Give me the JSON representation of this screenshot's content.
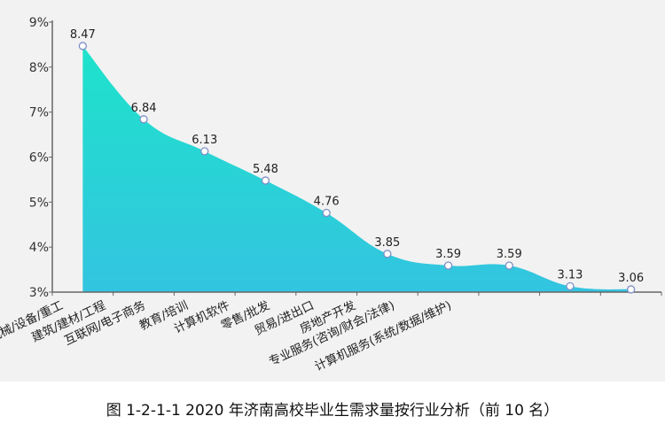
{
  "chart_data": {
    "type": "area",
    "title": "",
    "xlabel": "",
    "ylabel": "",
    "categories": [
      "机械/设备/重工",
      "建筑/建材/工程",
      "互联网/电子商务",
      "教育/培训",
      "计算机软件",
      "零售/批发",
      "贸易/进出口",
      "房地产开发",
      "专业服务(咨询/财会/法律)",
      "计算机服务(系统/数据/维护)"
    ],
    "values": [
      8.47,
      6.84,
      6.13,
      5.48,
      4.76,
      3.85,
      3.59,
      3.59,
      3.13,
      3.06
    ],
    "data_labels": [
      "8.47",
      "6.84",
      "6.13",
      "5.48",
      "4.76",
      "3.85",
      "3.59",
      "3.59",
      "3.13",
      "3.06"
    ],
    "ylim": [
      3,
      9
    ],
    "yticks": [
      "3%",
      "4%",
      "5%",
      "6%",
      "7%",
      "8%",
      "9%"
    ],
    "grid": false,
    "smooth": true,
    "colors": {
      "fill_top": "#1ee3cb",
      "fill_bottom": "#33c4e0",
      "marker_stroke": "#7e8fc8",
      "axis": "#666666"
    }
  },
  "caption": "图 1-2-1-1 2020 年济南高校毕业生需求量按行业分析（前 10 名）"
}
